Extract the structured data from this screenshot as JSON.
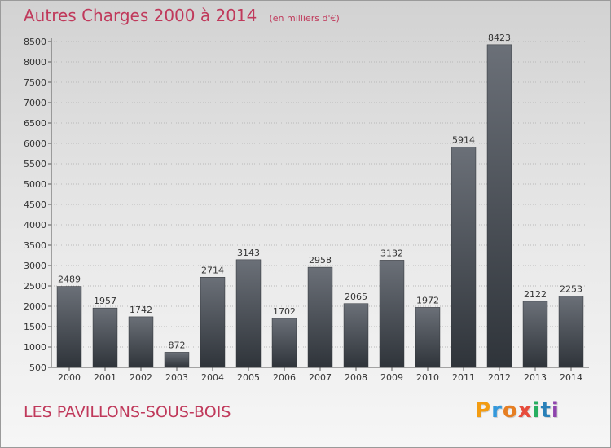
{
  "header": {
    "title": "Autres Charges 2000 à 2014",
    "subtitle": "(en milliers d'€)"
  },
  "footer": {
    "location": "LES PAVILLONS-SOUS-BOIS",
    "logo_text": "Proxiti",
    "logo_letters": [
      {
        "ch": "P",
        "color": "#f39c12"
      },
      {
        "ch": "r",
        "color": "#3498db"
      },
      {
        "ch": "o",
        "color": "#e67e22"
      },
      {
        "ch": "x",
        "color": "#e74c3c"
      },
      {
        "ch": "i",
        "color": "#27ae60"
      },
      {
        "ch": "t",
        "color": "#2980b9"
      },
      {
        "ch": "i",
        "color": "#8e44ad"
      }
    ]
  },
  "colors": {
    "accent": "#c0395b",
    "bar_top": "#6b7078",
    "bar_bottom": "#2f343a",
    "grid": "#b9b9b9"
  },
  "chart_data": {
    "type": "bar",
    "categories": [
      "2000",
      "2001",
      "2002",
      "2003",
      "2004",
      "2005",
      "2006",
      "2007",
      "2008",
      "2009",
      "2010",
      "2011",
      "2012",
      "2013",
      "2014"
    ],
    "values": [
      2489,
      1957,
      1742,
      872,
      2714,
      3143,
      1702,
      2958,
      2065,
      3132,
      1972,
      5914,
      8423,
      2122,
      2253
    ],
    "ylim": [
      500,
      8500
    ],
    "yticks": [
      500,
      1000,
      1500,
      2000,
      2500,
      3000,
      3500,
      4000,
      4500,
      5000,
      5500,
      6000,
      6500,
      7000,
      7500,
      8000,
      8500
    ],
    "grid": true,
    "data_labels": true
  }
}
